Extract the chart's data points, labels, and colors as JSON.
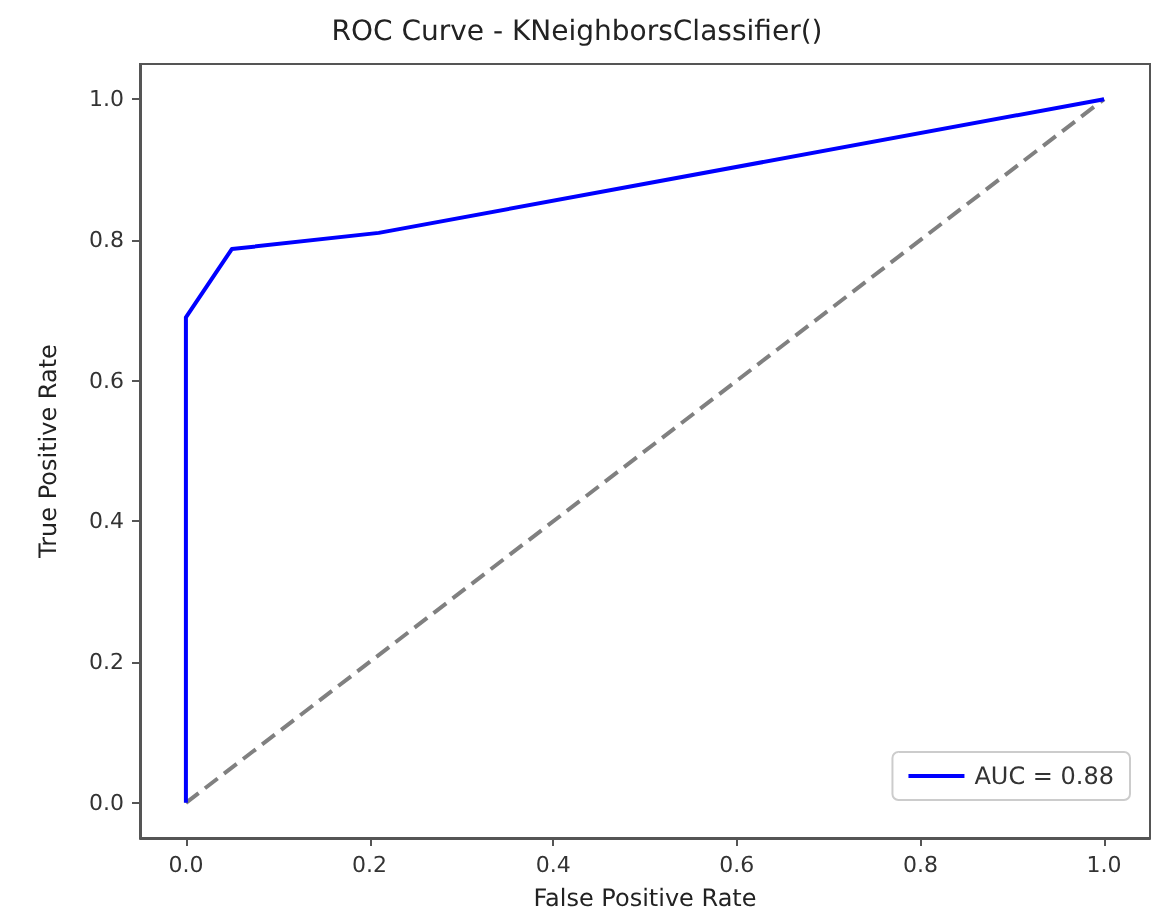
{
  "chart_data": {
    "type": "line",
    "title": "ROC Curve - KNeighborsClassifier()",
    "xlabel": "False Positive Rate",
    "ylabel": "True Positive Rate",
    "series": [
      {
        "name": "AUC = 0.88",
        "color": "#0000ff",
        "x": [
          0,
          0,
          0.05,
          0.21,
          1
        ],
        "values": [
          0,
          0.69,
          0.787,
          0.81,
          1
        ],
        "line_style": "solid"
      },
      {
        "color": "#808080",
        "x": [
          0,
          1
        ],
        "values": [
          0,
          1
        ],
        "line_style": "dashed"
      }
    ],
    "xlim": [
      -0.05,
      1.05
    ],
    "ylim": [
      -0.05,
      1.05
    ],
    "xticks": [
      {
        "value": 0,
        "label": "0.0"
      },
      {
        "value": 0.2,
        "label": "0.2"
      },
      {
        "value": 0.4,
        "label": "0.4"
      },
      {
        "value": 0.6,
        "label": "0.6"
      },
      {
        "value": 0.8,
        "label": "0.8"
      },
      {
        "value": 1,
        "label": "1.0"
      }
    ],
    "yticks": [
      {
        "value": 0,
        "label": "0.0"
      },
      {
        "value": 0.2,
        "label": "0.2"
      },
      {
        "value": 0.4,
        "label": "0.4"
      },
      {
        "value": 0.6,
        "label": "0.6"
      },
      {
        "value": 0.8,
        "label": "0.8"
      },
      {
        "value": 1,
        "label": "1.0"
      }
    ],
    "grid": false,
    "legend": "bottom right",
    "marker": "none"
  }
}
